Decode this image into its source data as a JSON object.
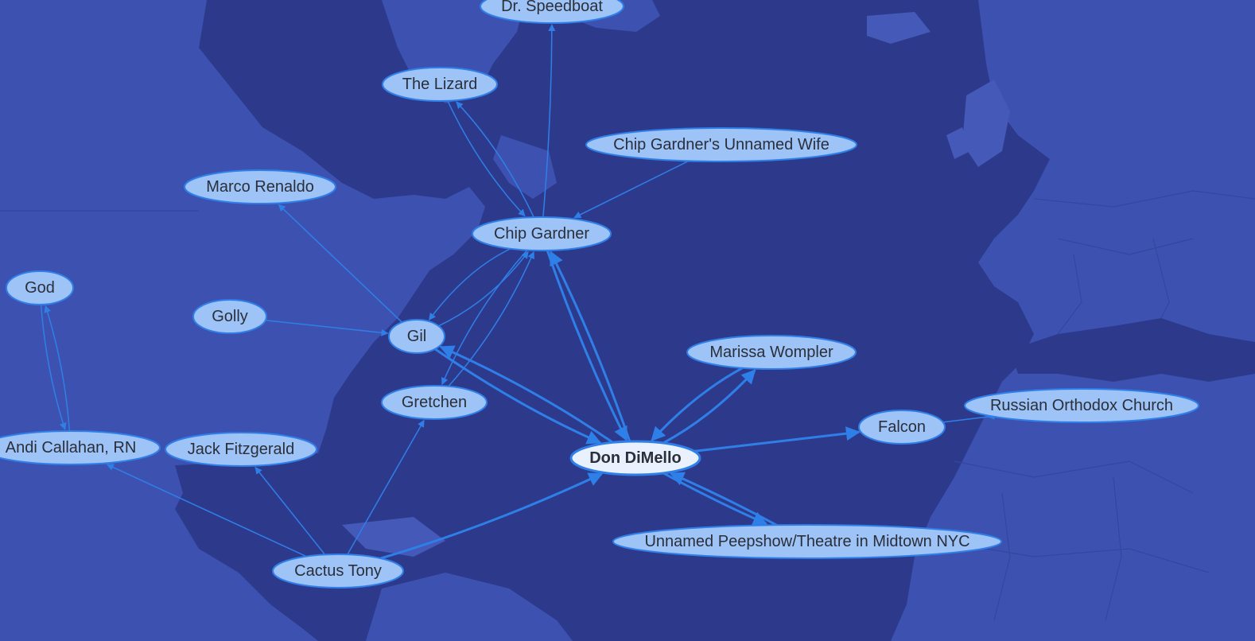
{
  "colors": {
    "ocean": "#2d3a8c",
    "land": "#3d52b0",
    "edge": "#2f7fe8",
    "node_fill": "#9ec3f7",
    "node_focus_fill": "#e8f1fd",
    "label": "#2a2f3a"
  },
  "graph": {
    "focus": "don",
    "nodes": [
      {
        "id": "speedboat",
        "label": "Dr. Speedboat"
      },
      {
        "id": "lizard",
        "label": "The Lizard"
      },
      {
        "id": "wife",
        "label": "Chip Gardner's Unnamed Wife"
      },
      {
        "id": "marco",
        "label": "Marco Renaldo"
      },
      {
        "id": "chip",
        "label": "Chip Gardner"
      },
      {
        "id": "god",
        "label": "God"
      },
      {
        "id": "golly",
        "label": "Golly"
      },
      {
        "id": "gil",
        "label": "Gil"
      },
      {
        "id": "marissa",
        "label": "Marissa Wompler"
      },
      {
        "id": "gretchen",
        "label": "Gretchen"
      },
      {
        "id": "falcon",
        "label": "Falcon"
      },
      {
        "id": "roc",
        "label": "Russian Orthodox Church"
      },
      {
        "id": "andi",
        "label": "Andi Callahan, RN"
      },
      {
        "id": "jack",
        "label": "Jack Fitzgerald"
      },
      {
        "id": "don",
        "label": "Don DiMello"
      },
      {
        "id": "peepshow",
        "label": "Unnamed Peepshow/Theatre in Midtown NYC"
      },
      {
        "id": "cactus",
        "label": "Cactus Tony"
      }
    ],
    "edges": [
      {
        "from": "chip",
        "to": "speedboat"
      },
      {
        "from": "chip",
        "to": "lizard"
      },
      {
        "from": "lizard",
        "to": "chip"
      },
      {
        "from": "wife",
        "to": "chip"
      },
      {
        "from": "gil",
        "to": "marco"
      },
      {
        "from": "gil",
        "to": "chip"
      },
      {
        "from": "chip",
        "to": "gil"
      },
      {
        "from": "golly",
        "to": "gil"
      },
      {
        "from": "gretchen",
        "to": "chip"
      },
      {
        "from": "chip",
        "to": "gretchen"
      },
      {
        "from": "chip",
        "to": "don"
      },
      {
        "from": "don",
        "to": "chip"
      },
      {
        "from": "gil",
        "to": "don"
      },
      {
        "from": "don",
        "to": "gil"
      },
      {
        "from": "god",
        "to": "andi"
      },
      {
        "from": "andi",
        "to": "god"
      },
      {
        "from": "don",
        "to": "marissa"
      },
      {
        "from": "marissa",
        "to": "don"
      },
      {
        "from": "don",
        "to": "falcon"
      },
      {
        "from": "falcon",
        "to": "roc"
      },
      {
        "from": "don",
        "to": "peepshow"
      },
      {
        "from": "peepshow",
        "to": "don"
      },
      {
        "from": "cactus",
        "to": "don"
      },
      {
        "from": "cactus",
        "to": "gretchen"
      },
      {
        "from": "cactus",
        "to": "jack"
      },
      {
        "from": "cactus",
        "to": "andi"
      }
    ]
  }
}
